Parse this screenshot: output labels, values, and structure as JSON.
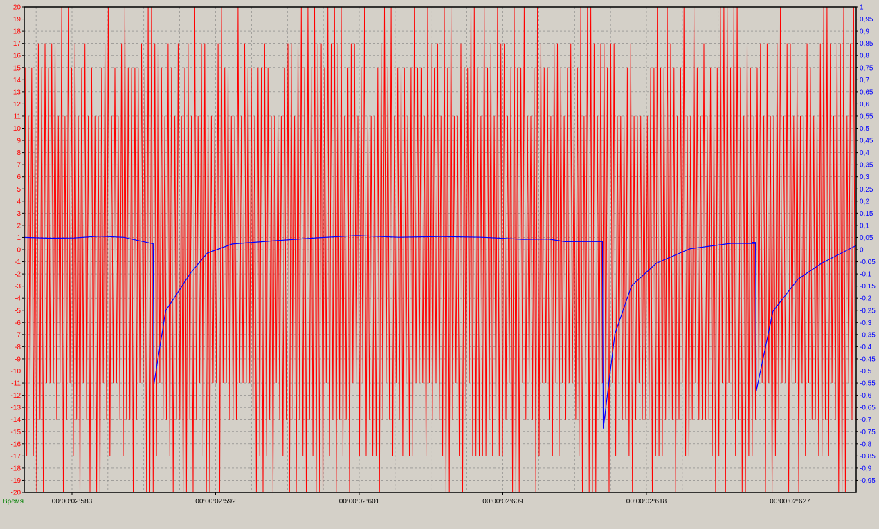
{
  "chart_data": {
    "type": "line",
    "xlabel": "Время",
    "x_tick_labels": [
      "00:00:02:583",
      "00:00:02:592",
      "00:00:02:601",
      "00:00:02:609",
      "00:00:02:618",
      "00:00:02:627"
    ],
    "y_left": {
      "ylim": [
        -20,
        20
      ],
      "ticks": [
        20,
        19,
        18,
        17,
        16,
        15,
        14,
        13,
        12,
        11,
        10,
        9,
        8,
        7,
        6,
        5,
        4,
        3,
        2,
        1,
        0,
        -1,
        -2,
        -3,
        -4,
        -5,
        -6,
        -7,
        -8,
        -9,
        -10,
        -11,
        -12,
        -13,
        -14,
        -15,
        -16,
        -17,
        -18,
        -19,
        -20
      ],
      "color": "#ff0000"
    },
    "y_right": {
      "ylim": [
        -1,
        1
      ],
      "ticks": [
        "1",
        "0,95",
        "0,9",
        "0,85",
        "0,8",
        "0,75",
        "0,7",
        "0,65",
        "0,6",
        "0,55",
        "0,5",
        "0,45",
        "0,4",
        "0,35",
        "0,3",
        "0,25",
        "0,2",
        "0,15",
        "0,1",
        "0,05",
        "0",
        "-0,05",
        "-0,1",
        "-0,15",
        "-0,2",
        "-0,25",
        "-0,3",
        "-0,35",
        "-0,4",
        "-0,45",
        "-0,5",
        "-0,55",
        "-0,6",
        "-0,65",
        "-0,7",
        "-0,75",
        "-0,8",
        "-0,85",
        "-0,9",
        "-0,95"
      ],
      "color": "#0000ff"
    },
    "grid": true,
    "x_range": [
      0,
      1
    ],
    "series": [
      {
        "axis": "left",
        "color": "#ff0000",
        "description_values": "dense oscillation between approx -20 and 20",
        "cycles": 250,
        "typical_peaks": [
          11,
          15,
          17,
          20
        ],
        "typical_troughs": [
          -11,
          -14,
          -17,
          -20
        ]
      },
      {
        "axis": "right",
        "color": "#0000ff",
        "x": [
          0,
          0.03,
          0.06,
          0.09,
          0.12,
          0.155,
          0.156,
          0.17,
          0.2,
          0.22,
          0.25,
          0.3,
          0.35,
          0.4,
          0.45,
          0.5,
          0.55,
          0.6,
          0.63,
          0.65,
          0.695,
          0.696,
          0.71,
          0.73,
          0.76,
          0.8,
          0.85,
          0.88,
          0.875,
          0.879,
          0.88,
          0.9,
          0.93,
          0.96,
          1.0
        ],
        "values": [
          0.05,
          0.05,
          0.05,
          0.05,
          0.045,
          0.03,
          -0.55,
          -0.25,
          -0.1,
          -0.02,
          0.02,
          0.04,
          0.05,
          0.055,
          0.05,
          0.05,
          0.05,
          0.045,
          0.04,
          0.03,
          0.03,
          -0.74,
          -0.35,
          -0.15,
          -0.05,
          0.0,
          0.02,
          0.03,
          0.03,
          0.03,
          -0.58,
          -0.25,
          -0.12,
          -0.05,
          0.02
        ]
      }
    ]
  }
}
